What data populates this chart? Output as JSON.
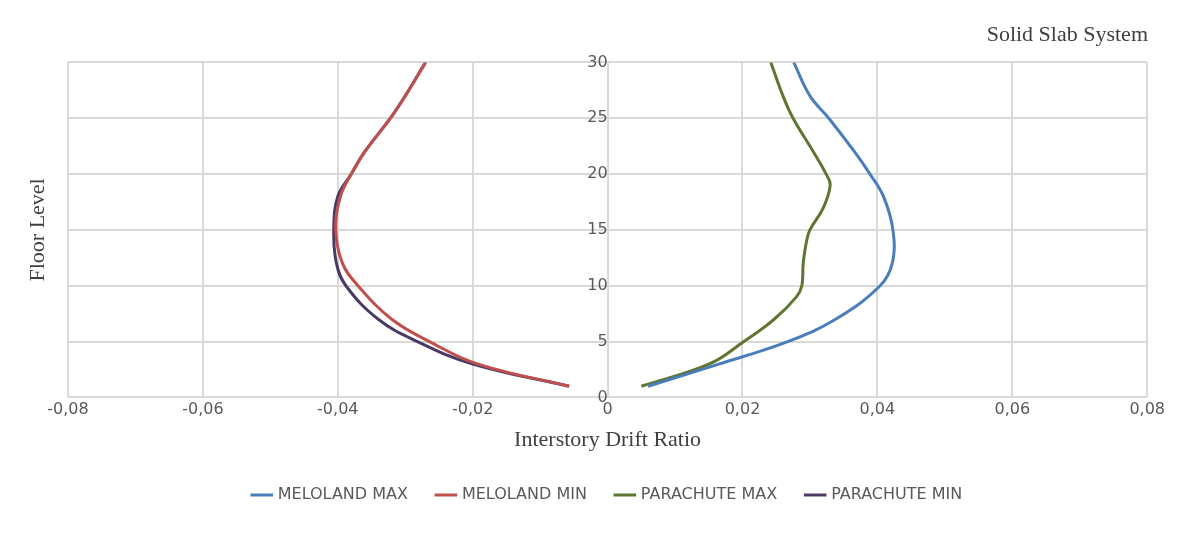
{
  "chart_data": {
    "type": "line",
    "title": "Solid Slab System",
    "xlabel": "Interstory Drift Ratio",
    "ylabel": "Floor Level",
    "xlim": [
      -0.08,
      0.08
    ],
    "xticks": [
      {
        "value": -0.08,
        "label": "-0,08"
      },
      {
        "value": -0.06,
        "label": "-0,06"
      },
      {
        "value": -0.04,
        "label": "-0,04"
      },
      {
        "value": -0.02,
        "label": "-0,02"
      },
      0,
      {
        "value": 0.02,
        "label": "0,02"
      },
      {
        "value": 0.04,
        "label": "0,04"
      },
      {
        "value": 0.06,
        "label": "0,06"
      },
      {
        "value": 0.08,
        "label": "0,08"
      }
    ],
    "ylim": [
      0,
      30
    ],
    "yticks": [
      0,
      5,
      10,
      15,
      20,
      25,
      30
    ],
    "grid": true,
    "legend": "bottom",
    "marker": "none",
    "line_style": "solid",
    "series": [
      {
        "name": "MELOLAND MAX",
        "color": "#4a7ebb",
        "x": [
          0.006,
          0.0166,
          0.0267,
          0.0338,
          0.0404,
          0.0422,
          0.0423,
          0.0409,
          0.0389,
          0.0366,
          0.0328,
          0.03,
          0.0276
        ],
        "values": [
          1,
          3,
          5,
          7,
          10,
          12,
          15,
          18,
          20,
          22,
          25,
          27,
          30
        ]
      },
      {
        "name": "MELOLAND MIN",
        "color": "#c0504d",
        "x": [
          -0.0057,
          -0.0193,
          -0.0264,
          -0.032,
          -0.037,
          -0.0393,
          -0.0403,
          -0.0396,
          -0.038,
          -0.036,
          -0.0322,
          -0.03,
          -0.027
        ],
        "values": [
          1,
          3,
          5,
          7,
          10,
          12,
          15,
          18,
          20,
          22,
          25,
          27,
          30
        ]
      },
      {
        "name": "PARACHUTE MAX",
        "color": "#5f7530",
        "x": [
          0.005,
          0.0151,
          0.0202,
          0.0247,
          0.028,
          0.0288,
          0.029,
          0.0295,
          0.03,
          0.032,
          0.033,
          0.0324,
          0.0305,
          0.0275,
          0.026,
          0.0242
        ],
        "values": [
          1,
          3,
          5,
          7,
          9,
          10,
          12,
          14,
          15,
          17,
          19,
          20,
          22,
          25,
          27,
          30
        ]
      },
      {
        "name": "PARACHUTE MIN",
        "color": "#4b3a66",
        "x": [
          -0.0057,
          -0.0201,
          -0.0282,
          -0.034,
          -0.0388,
          -0.0402,
          -0.0406,
          -0.04,
          -0.038,
          -0.036,
          -0.0322,
          -0.03,
          -0.027
        ],
        "values": [
          1,
          3,
          5,
          7,
          10,
          12,
          15,
          18,
          20,
          22,
          25,
          27,
          30
        ]
      }
    ]
  }
}
